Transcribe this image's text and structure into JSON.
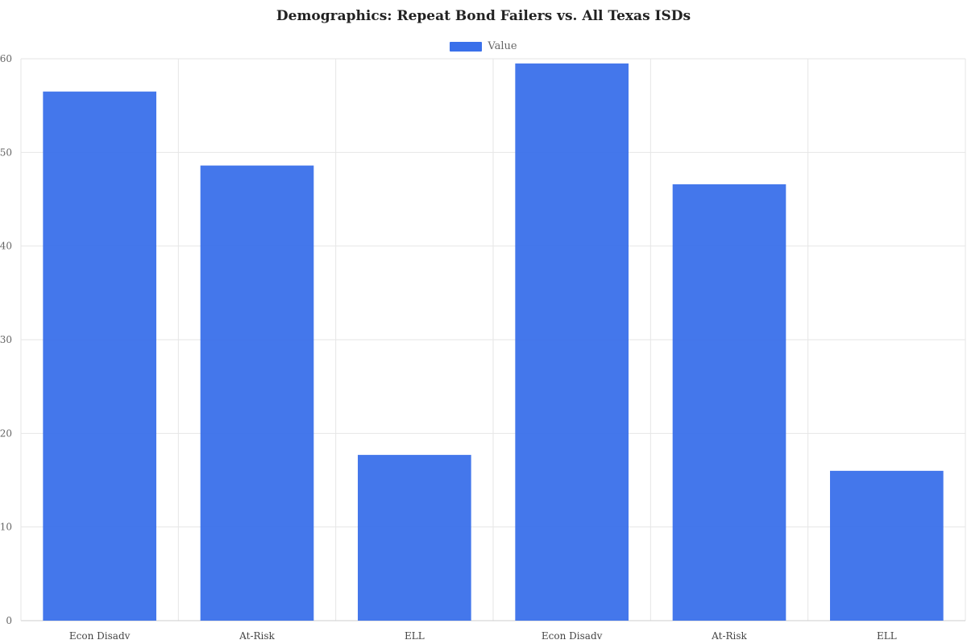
{
  "chart_data": {
    "type": "bar",
    "title": "Demographics: Repeat Bond Failers vs. All Texas ISDs",
    "xlabel": "",
    "ylabel": "",
    "categories": [
      "Econ Disadv",
      "At-Risk",
      "ELL",
      "Econ Disadv",
      "At-Risk",
      "ELL"
    ],
    "series": [
      {
        "name": "Value",
        "values": [
          56.5,
          48.6,
          17.7,
          59.5,
          46.6,
          16.0
        ]
      }
    ],
    "ylim": [
      0,
      60
    ],
    "yticks": [
      0,
      10,
      20,
      30,
      40,
      50,
      60
    ],
    "grid": true,
    "legend_position": "top-center",
    "colors": {
      "bar": "#3a70ea",
      "grid": "#e6e6e6",
      "axis": "#cccccc"
    }
  }
}
